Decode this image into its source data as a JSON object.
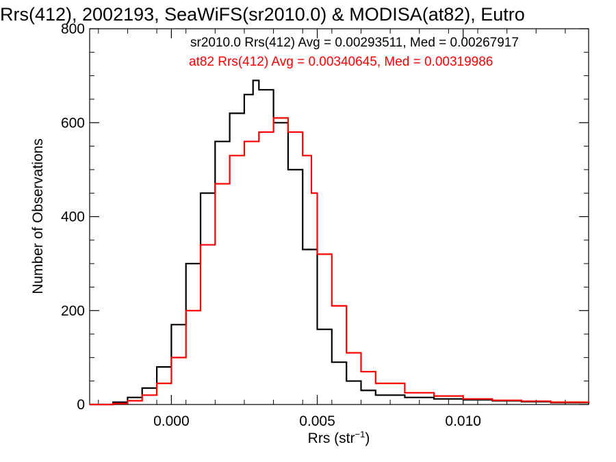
{
  "chart_data": {
    "type": "line",
    "step": true,
    "title": "Rrs(412), 2002193, SeaWiFS(sr2010.0) & MODISA(at82), Eutro",
    "xlabel_main": "Rrs (str",
    "xlabel_sup": "−1",
    "xlabel_close": ")",
    "ylabel": "Number of Observations",
    "xlim": [
      -0.0028,
      0.0143
    ],
    "ylim": [
      0,
      800
    ],
    "x_ticks": [
      0.0,
      0.005,
      0.01
    ],
    "x_tick_labels": [
      "0.000",
      "0.005",
      "0.010"
    ],
    "y_ticks": [
      0,
      200,
      400,
      600,
      800
    ],
    "y_tick_labels": [
      "0",
      "200",
      "400",
      "600",
      "800"
    ],
    "annotations": [
      {
        "text": "sr2010.0 Rrs(412) Avg = 0.00293511, Med = 0.00267917",
        "color": "#000000"
      },
      {
        "text": "at82 Rrs(412) Avg = 0.00340645, Med = 0.00319986",
        "color": "#ff0000"
      }
    ],
    "series": [
      {
        "name": "sr2010.0",
        "color": "#000000",
        "x": [
          -0.0028,
          -0.002,
          -0.0015,
          -0.001,
          -0.0005,
          0.0,
          0.0005,
          0.001,
          0.0015,
          0.002,
          0.0025,
          0.0028,
          0.003,
          0.0035,
          0.004,
          0.0045,
          0.005,
          0.0055,
          0.006,
          0.0065,
          0.007,
          0.008,
          0.009,
          0.01,
          0.011,
          0.012,
          0.013,
          0.0143
        ],
        "y": [
          0,
          5,
          15,
          35,
          80,
          170,
          300,
          450,
          560,
          620,
          660,
          690,
          670,
          600,
          500,
          330,
          160,
          90,
          50,
          30,
          20,
          15,
          12,
          10,
          8,
          6,
          4,
          2
        ]
      },
      {
        "name": "at82",
        "color": "#ff0000",
        "x": [
          -0.0028,
          -0.002,
          -0.0015,
          -0.001,
          -0.0005,
          0.0,
          0.0005,
          0.001,
          0.0015,
          0.002,
          0.0025,
          0.003,
          0.0035,
          0.004,
          0.0045,
          0.0048,
          0.005,
          0.0055,
          0.006,
          0.0065,
          0.007,
          0.008,
          0.009,
          0.01,
          0.011,
          0.012,
          0.013,
          0.0143
        ],
        "y": [
          0,
          2,
          8,
          20,
          45,
          100,
          200,
          340,
          470,
          530,
          560,
          580,
          610,
          580,
          530,
          450,
          320,
          210,
          110,
          70,
          45,
          25,
          18,
          12,
          9,
          7,
          5,
          3
        ]
      }
    ]
  }
}
